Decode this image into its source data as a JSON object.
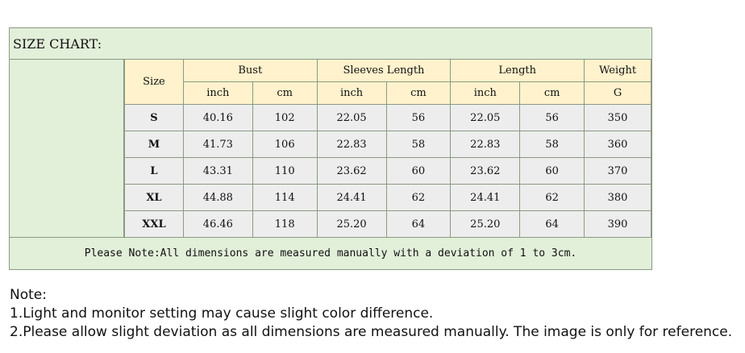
{
  "chart": {
    "title": "SIZE CHART:",
    "size_header": "Size",
    "groups": [
      {
        "name": "Bust",
        "units": [
          "inch",
          "cm"
        ]
      },
      {
        "name": "Sleeves Length",
        "units": [
          "inch",
          "cm"
        ]
      },
      {
        "name": "Length",
        "units": [
          "inch",
          "cm"
        ]
      },
      {
        "name": "Weight",
        "units": [
          "G"
        ]
      }
    ],
    "rows": [
      {
        "size": "S",
        "bust_inch": "40.16",
        "bust_cm": "102",
        "sleeve_inch": "22.05",
        "sleeve_cm": "56",
        "length_inch": "22.05",
        "length_cm": "56",
        "weight": "350"
      },
      {
        "size": "M",
        "bust_inch": "41.73",
        "bust_cm": "106",
        "sleeve_inch": "22.83",
        "sleeve_cm": "58",
        "length_inch": "22.83",
        "length_cm": "58",
        "weight": "360"
      },
      {
        "size": "L",
        "bust_inch": "43.31",
        "bust_cm": "110",
        "sleeve_inch": "23.62",
        "sleeve_cm": "60",
        "length_inch": "23.62",
        "length_cm": "60",
        "weight": "370"
      },
      {
        "size": "XL",
        "bust_inch": "44.88",
        "bust_cm": "114",
        "sleeve_inch": "24.41",
        "sleeve_cm": "62",
        "length_inch": "24.41",
        "length_cm": "62",
        "weight": "380"
      },
      {
        "size": "XXL",
        "bust_inch": "46.46",
        "bust_cm": "118",
        "sleeve_inch": "25.20",
        "sleeve_cm": "64",
        "length_inch": "25.20",
        "length_cm": "64",
        "weight": "390"
      }
    ],
    "note": "Please Note:All dimensions are measured manually with a deviation of 1 to 3cm."
  },
  "notes": {
    "heading": "Note:",
    "line1": "1.Light and monitor setting may cause slight color difference.",
    "line2": "2.Please allow slight deviation as all dimensions are measured manually. The image is only for reference."
  },
  "colors": {
    "green_background": "#e2efd9",
    "header_yellow": "#fff2cc",
    "row_gray": "#ededed",
    "border": "#8a9a82"
  }
}
